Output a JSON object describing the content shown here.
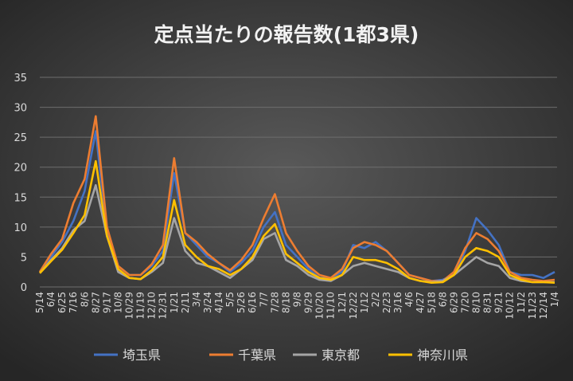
{
  "chart_data": {
    "type": "line",
    "title": "定点当たりの報告数(1都3県)",
    "categories": [
      "5/14",
      "6/4",
      "6/25",
      "7/16",
      "8/6",
      "8/27",
      "9/17",
      "10/8",
      "10/29",
      "11/19",
      "12/10",
      "12/31",
      "1/21",
      "2/11",
      "3/4",
      "3/24",
      "4/14",
      "5/5",
      "5/26",
      "6/16",
      "7/7",
      "7/28",
      "8/18",
      "9/8",
      "9/29",
      "10/20",
      "11/10",
      "12/1",
      "12/22",
      "1/12",
      "2/2",
      "2/23",
      "3/16",
      "4/6",
      "4/27",
      "5/18",
      "6/8",
      "6/29",
      "7/20",
      "8/10",
      "8/31",
      "9/21",
      "10/12",
      "11/2",
      "11/23",
      "12/14",
      "1/4"
    ],
    "series": [
      {
        "name": "埼玉県",
        "color": "#4472c4",
        "values": [
          2.5,
          5,
          7.5,
          11,
          16,
          26,
          9,
          3.5,
          2,
          2,
          3.5,
          6,
          19,
          9,
          7,
          5,
          4,
          2.5,
          4,
          6,
          10,
          12.5,
          7,
          5,
          3,
          1.5,
          1.5,
          2.5,
          7,
          6.5,
          7.5,
          6,
          4,
          2,
          1.5,
          1,
          1.2,
          2,
          6,
          11.5,
          9.5,
          7,
          2.5,
          2,
          2,
          1.5,
          2.5
        ]
      },
      {
        "name": "千葉県",
        "color": "#ed7d31",
        "values": [
          2.5,
          5.5,
          8,
          14,
          18,
          28.5,
          10,
          3.5,
          2,
          2,
          3.8,
          7,
          21.5,
          9,
          7.5,
          5.5,
          4,
          2.8,
          4.5,
          7,
          11.5,
          15.5,
          9,
          6,
          3.5,
          2,
          1.5,
          3,
          6.5,
          7.5,
          7,
          6,
          4,
          2,
          1.5,
          1,
          1,
          2.5,
          6.5,
          9,
          8,
          6,
          2.5,
          1.5,
          1.2,
          1,
          1.2
        ]
      },
      {
        "name": "東京都",
        "color": "#a5a5a5",
        "values": [
          2.3,
          4.5,
          6.5,
          9.5,
          11,
          17,
          8.5,
          2.5,
          1.5,
          1.3,
          2.5,
          4,
          11.5,
          6,
          4,
          3.5,
          2.5,
          1.5,
          3,
          4.5,
          8,
          9,
          4.5,
          3.5,
          2,
          1.2,
          1,
          2,
          3.5,
          4,
          3.5,
          3,
          2.5,
          1.5,
          1,
          0.8,
          1,
          2,
          3.5,
          5,
          4,
          3.5,
          1.5,
          1,
          0.8,
          0.8,
          0.8
        ]
      },
      {
        "name": "神奈川県",
        "color": "#ffc000",
        "values": [
          2.3,
          4.3,
          6.2,
          9,
          12,
          21,
          8.5,
          3,
          1.5,
          1.3,
          2.8,
          5,
          14.5,
          7,
          5,
          3.5,
          3,
          2,
          3,
          5,
          8.5,
          10.5,
          5.5,
          4,
          2.5,
          1.5,
          1.2,
          2,
          5,
          4.5,
          4.5,
          4,
          3,
          1.5,
          1,
          0.7,
          0.8,
          2,
          5,
          6.5,
          6,
          5,
          2,
          1.2,
          0.8,
          0.8,
          0.7
        ]
      }
    ],
    "ylim": [
      0,
      35
    ],
    "yticks": [
      0,
      5,
      10,
      15,
      20,
      25,
      30,
      35
    ],
    "grid": true,
    "legend": "bottom"
  }
}
